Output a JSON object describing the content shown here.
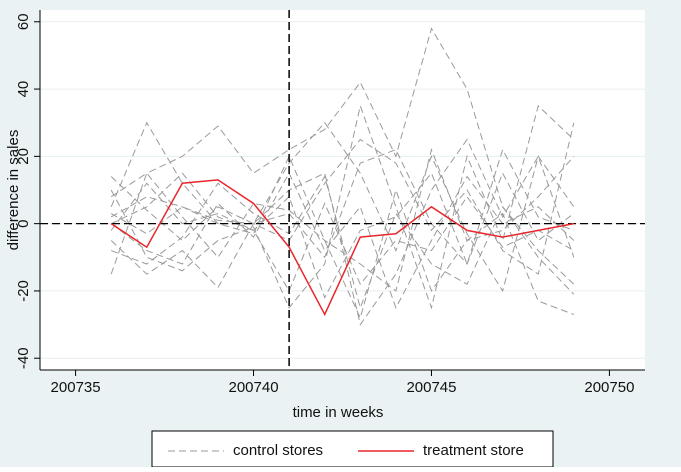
{
  "chart_data": {
    "type": "line",
    "x_label": "time in weeks",
    "y_label": "difference in sales",
    "x": [
      200736,
      200737,
      200738,
      200739,
      200740,
      200741,
      200742,
      200743,
      200744,
      200745,
      200746,
      200747,
      200748,
      200749
    ],
    "xlim": [
      200734,
      200751
    ],
    "xticks": [
      200735,
      200740,
      200745,
      200750
    ],
    "ylim": [
      -43.5,
      63.5
    ],
    "yticks": [
      -40,
      -20,
      0,
      20,
      40,
      60
    ],
    "grid": true,
    "vline": 200741,
    "hline": 0,
    "legend": "bottom",
    "series": [
      {
        "name": "control stores",
        "color": "#9a9a9a",
        "dashed": true,
        "values": [
          5,
          30,
          12,
          0,
          -3,
          20,
          -5,
          -28,
          10,
          -20,
          -5,
          3,
          -23,
          -27
        ]
      },
      {
        "color": "#9a9a9a",
        "dashed": true,
        "values": [
          -15,
          15,
          20,
          29,
          15,
          22,
          28,
          42,
          20,
          58,
          40,
          5,
          -10,
          -21
        ]
      },
      {
        "color": "#9a9a9a",
        "dashed": true,
        "values": [
          10,
          -10,
          -14,
          -5,
          -1,
          -25,
          -12,
          35,
          5,
          -25,
          20,
          -5,
          35,
          25
        ]
      },
      {
        "color": "#9a9a9a",
        "dashed": true,
        "values": [
          2,
          8,
          5,
          0,
          0,
          10,
          15,
          -30,
          -15,
          10,
          25,
          2,
          20,
          -10
        ]
      },
      {
        "color": "#9a9a9a",
        "dashed": true,
        "values": [
          -5,
          -15,
          -8,
          -19,
          0,
          3,
          -10,
          18,
          22,
          0,
          -12,
          15,
          -5,
          3
        ]
      },
      {
        "color": "#9a9a9a",
        "dashed": true,
        "values": [
          14,
          4,
          -5,
          5,
          0,
          18,
          30,
          15,
          -8,
          20,
          -3,
          -20,
          20,
          5
        ]
      },
      {
        "color": "#9a9a9a",
        "dashed": true,
        "values": [
          0,
          5,
          15,
          2,
          -2,
          -20,
          6,
          -18,
          -5,
          -8,
          8,
          -7,
          -2,
          -8
        ]
      },
      {
        "color": "#9a9a9a",
        "dashed": true,
        "values": [
          -2,
          12,
          0,
          3,
          -2,
          8,
          -22,
          -2,
          2,
          15,
          -12,
          22,
          2,
          -2
        ]
      },
      {
        "color": "#9a9a9a",
        "dashed": true,
        "values": [
          3,
          -3,
          5,
          1,
          0,
          -5,
          12,
          25,
          18,
          -2,
          10,
          -8,
          -15,
          30
        ]
      },
      {
        "color": "#9a9a9a",
        "dashed": true,
        "values": [
          8,
          15,
          2,
          -10,
          6,
          4,
          -5,
          -12,
          -20,
          22,
          -5,
          -2,
          8,
          20
        ]
      },
      {
        "color": "#9a9a9a",
        "dashed": true,
        "values": [
          -8,
          -12,
          -4,
          12,
          3,
          -3,
          14,
          -25,
          3,
          -12,
          -18,
          5,
          -8,
          -18
        ]
      },
      {
        "color": "#9a9a9a",
        "dashed": true,
        "values": [
          0,
          -8,
          -12,
          6,
          -4,
          15,
          -8,
          5,
          -25,
          -5,
          14,
          0,
          5,
          -5
        ]
      },
      {
        "name": "treatment store",
        "color": "#e8262c",
        "dashed": false,
        "values": [
          0,
          -7,
          12,
          13,
          6,
          -7,
          -27,
          -4,
          -3,
          5,
          -2,
          -4,
          -2,
          0
        ]
      }
    ]
  }
}
